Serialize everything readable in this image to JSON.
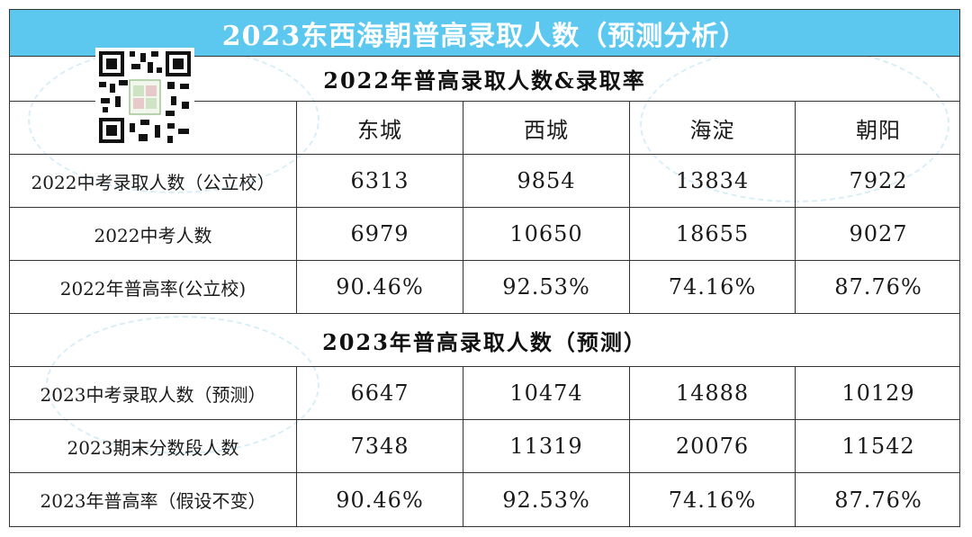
{
  "title": "2023东西海朝普高录取人数（预测分析）",
  "section1": {
    "heading": "2022年普高录取人数&录取率",
    "columns": [
      "",
      "东城",
      "西城",
      "海淀",
      "朝阳"
    ],
    "rows": [
      {
        "label": "2022中考录取人数（公立校）",
        "values": [
          "6313",
          "9854",
          "13834",
          "7922"
        ]
      },
      {
        "label": "2022中考人数",
        "values": [
          "6979",
          "10650",
          "18655",
          "9027"
        ]
      },
      {
        "label": "2022年普高率(公立校)",
        "values": [
          "90.46%",
          "92.53%",
          "74.16%",
          "87.76%"
        ]
      }
    ]
  },
  "section2": {
    "heading": "2023年普高录取人数（预测）",
    "rows": [
      {
        "label": "2023中考录取人数（预测）",
        "values": [
          "6647",
          "10474",
          "14888",
          "10129"
        ]
      },
      {
        "label": "2023期末分数段人数",
        "values": [
          "7348",
          "11319",
          "20076",
          "11542"
        ]
      },
      {
        "label": "2023年普高率（假设不变）",
        "values": [
          "90.46%",
          "92.53%",
          "74.16%",
          "87.76%"
        ]
      }
    ]
  },
  "colors": {
    "banner": "#5cc8f0",
    "border": "#333333"
  },
  "icons": {
    "qr": "qr-code-icon"
  }
}
